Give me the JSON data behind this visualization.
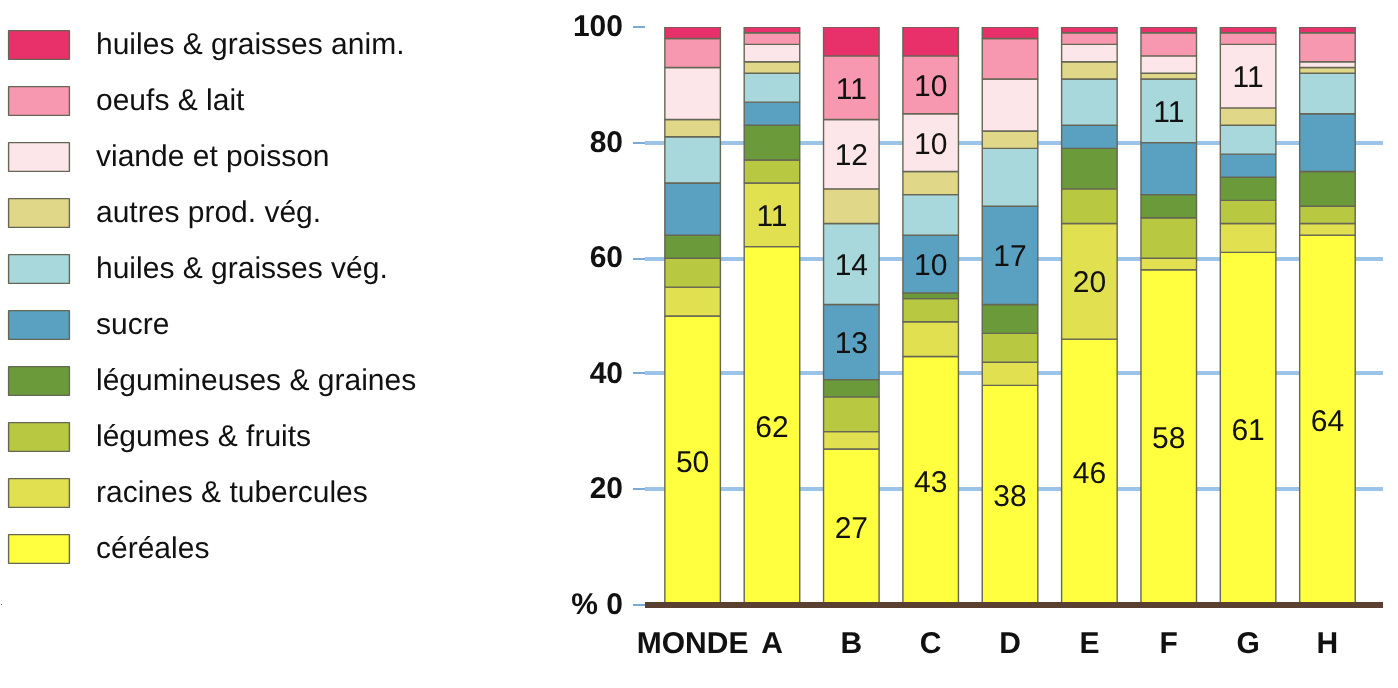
{
  "chart_data": {
    "type": "bar",
    "stacked": true,
    "categories": [
      "MONDE",
      "A",
      "B",
      "C",
      "D",
      "E",
      "F",
      "G",
      "H"
    ],
    "ylim": [
      0,
      100
    ],
    "yticks": [
      {
        "value": 0,
        "label": "% 0"
      },
      20,
      40,
      60,
      80,
      100
    ],
    "grid": "y",
    "legend": "left",
    "series": [
      {
        "name": "céréales",
        "color": "#ffff40",
        "values": [
          50,
          62,
          27,
          43,
          38,
          46,
          58,
          61,
          64
        ],
        "value_labels": [
          "50",
          "62",
          "27",
          "43",
          "38",
          "46",
          "58",
          "61",
          "64"
        ]
      },
      {
        "name": "racines & tubercules",
        "color": "#e0e050",
        "values": [
          5,
          11,
          3,
          6,
          4,
          20,
          2,
          5,
          2
        ],
        "value_labels": [
          null,
          "11",
          null,
          null,
          null,
          "20",
          null,
          null,
          null
        ]
      },
      {
        "name": "légumes & fruits",
        "color": "#b8c840",
        "values": [
          5,
          4,
          6,
          4,
          5,
          6,
          7,
          4,
          3
        ]
      },
      {
        "name": "légumineuses & graines",
        "color": "#6a9a3a",
        "values": [
          4,
          6,
          3,
          1,
          5,
          7,
          4,
          4,
          6
        ]
      },
      {
        "name": "sucre",
        "color": "#5aa0c0",
        "values": [
          9,
          4,
          13,
          10,
          17,
          4,
          9,
          4,
          10
        ],
        "value_labels": [
          null,
          null,
          "13",
          "10",
          "17",
          null,
          null,
          null,
          null
        ]
      },
      {
        "name": "huiles & graisses vég.",
        "color": "#a8d8dc",
        "values": [
          8,
          5,
          14,
          7,
          10,
          8,
          11,
          5,
          7
        ],
        "value_labels": [
          null,
          null,
          "14",
          null,
          null,
          null,
          "11",
          null,
          null
        ]
      },
      {
        "name": "autres prod. vég.",
        "color": "#e0d888",
        "values": [
          3,
          2,
          6,
          4,
          3,
          3,
          1,
          3,
          1
        ]
      },
      {
        "name": "viande et poisson",
        "color": "#fde6ea",
        "values": [
          9,
          3,
          12,
          10,
          9,
          3,
          3,
          11,
          1
        ],
        "value_labels": [
          null,
          null,
          "12",
          "10",
          null,
          null,
          null,
          "11",
          null
        ]
      },
      {
        "name": "oeufs & lait",
        "color": "#f898b0",
        "values": [
          5,
          2,
          11,
          10,
          7,
          2,
          4,
          2,
          5
        ],
        "value_labels": [
          null,
          null,
          "11",
          "10",
          null,
          null,
          null,
          null,
          null
        ]
      },
      {
        "name": "huiles & graisses anim.",
        "color": "#e8306a",
        "values": [
          2,
          1,
          5,
          5,
          2,
          1,
          1,
          1,
          1
        ]
      }
    ]
  }
}
